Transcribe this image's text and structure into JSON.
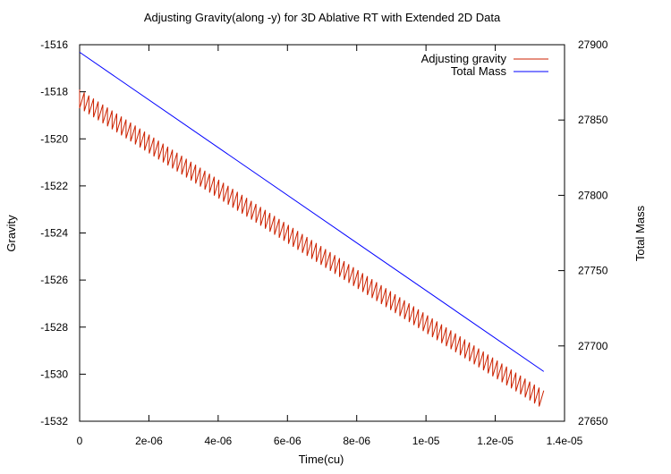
{
  "chart_data": {
    "type": "line",
    "title": "Adjusting Gravity(along -y) for 3D Ablative RT with Extended 2D Data",
    "xlabel": "Time(cu)",
    "ylabel": "Gravity",
    "y2label": "Total Mass",
    "xlim": [
      0,
      1.4e-05
    ],
    "ylim": [
      -1532,
      -1516
    ],
    "y2lim": [
      27650,
      27900
    ],
    "grid": false,
    "legend_position": "top-right",
    "x_ticks": [
      {
        "value": 0,
        "label": "0"
      },
      {
        "value": 2e-06,
        "label": "2e-06"
      },
      {
        "value": 4e-06,
        "label": "4e-06"
      },
      {
        "value": 6e-06,
        "label": "6e-06"
      },
      {
        "value": 8e-06,
        "label": "8e-06"
      },
      {
        "value": 1e-05,
        "label": "1e-05"
      },
      {
        "value": 1.2e-05,
        "label": "1.2e-05"
      },
      {
        "value": 1.4e-05,
        "label": "1.4e-05"
      }
    ],
    "y_ticks": [
      {
        "value": -1516,
        "label": "-1516"
      },
      {
        "value": -1518,
        "label": "-1518"
      },
      {
        "value": -1520,
        "label": "-1520"
      },
      {
        "value": -1522,
        "label": "-1522"
      },
      {
        "value": -1524,
        "label": "-1524"
      },
      {
        "value": -1526,
        "label": "-1526"
      },
      {
        "value": -1528,
        "label": "-1528"
      },
      {
        "value": -1530,
        "label": "-1530"
      },
      {
        "value": -1532,
        "label": "-1532"
      }
    ],
    "y2_ticks": [
      {
        "value": 27900,
        "label": "27900"
      },
      {
        "value": 27850,
        "label": "27850"
      },
      {
        "value": 27800,
        "label": "27800"
      },
      {
        "value": 27750,
        "label": "27750"
      },
      {
        "value": 27700,
        "label": "27700"
      },
      {
        "value": 27650,
        "label": "27650"
      }
    ],
    "series": [
      {
        "name": "Adjusting gravity",
        "axis": "left",
        "color": "#cc2200",
        "style": "sawtooth",
        "x_start": 0,
        "x_end": 1.34e-05,
        "y_top_start": -1517.9,
        "y_top_end": -1530.7,
        "drop": 0.8,
        "period": 1.34e-07
      },
      {
        "name": "Total Mass",
        "axis": "right",
        "color": "#0000ff",
        "style": "line",
        "x": [
          0,
          1.34e-05
        ],
        "y": [
          27895,
          27683
        ]
      }
    ]
  }
}
